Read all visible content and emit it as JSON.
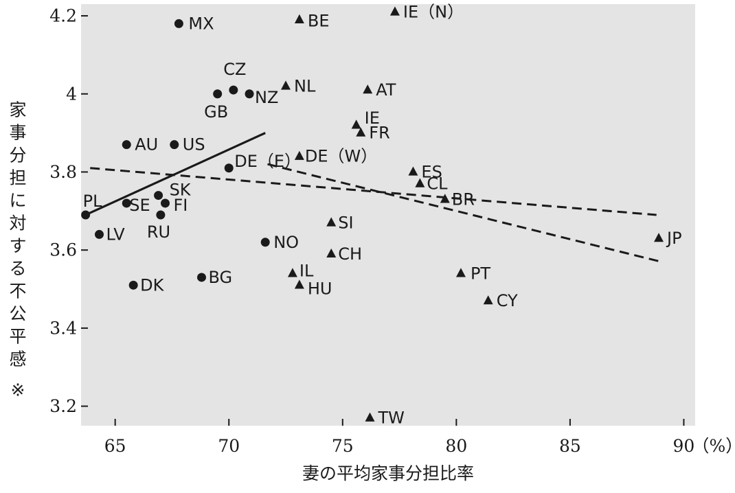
{
  "chart_data": {
    "type": "scatter",
    "xlabel": "妻の平均家事分担比率",
    "ylabel": "家事分担に対する不公平感",
    "ylabel_mark": "※",
    "x_unit": "（%）",
    "xlim": [
      63.5,
      90.5
    ],
    "ylim": [
      3.15,
      4.23
    ],
    "xticks": [
      65,
      70,
      75,
      80,
      85,
      90
    ],
    "yticks": [
      3.2,
      3.4,
      3.6,
      3.8,
      4,
      4.2
    ],
    "ytick_labels": [
      "3.2",
      "3.4",
      "3.6",
      "3.8",
      "4",
      "4.2"
    ],
    "grid": false,
    "colors": {
      "plot_bg": "#e4e4e4",
      "marker": "#1a1a1a"
    },
    "series": [
      {
        "marker": "circle",
        "points": [
          {
            "label": "MX",
            "x": 67.8,
            "y": 4.18
          },
          {
            "label": "CZ",
            "x": 70.2,
            "y": 4.01
          },
          {
            "label": "GB",
            "x": 69.5,
            "y": 4.0
          },
          {
            "label": "NZ",
            "x": 70.9,
            "y": 4.0
          },
          {
            "label": "AU",
            "x": 65.5,
            "y": 3.87
          },
          {
            "label": "US",
            "x": 67.6,
            "y": 3.87
          },
          {
            "label": "DE（E）",
            "x": 70.0,
            "y": 3.81
          },
          {
            "label": "SK",
            "x": 66.9,
            "y": 3.74
          },
          {
            "label": "PL",
            "x": 63.7,
            "y": 3.69
          },
          {
            "label": "SE",
            "x": 65.5,
            "y": 3.72
          },
          {
            "label": "FI",
            "x": 67.2,
            "y": 3.72
          },
          {
            "label": "RU",
            "x": 67.0,
            "y": 3.69
          },
          {
            "label": "LV",
            "x": 64.3,
            "y": 3.64
          },
          {
            "label": "NO",
            "x": 71.6,
            "y": 3.62
          },
          {
            "label": "DK",
            "x": 65.8,
            "y": 3.51
          },
          {
            "label": "BG",
            "x": 68.8,
            "y": 3.53
          }
        ]
      },
      {
        "marker": "triangle",
        "points": [
          {
            "label": "IE（N）",
            "x": 77.3,
            "y": 4.21
          },
          {
            "label": "BE",
            "x": 73.1,
            "y": 4.19
          },
          {
            "label": "NL",
            "x": 72.5,
            "y": 4.02
          },
          {
            "label": "AT",
            "x": 76.1,
            "y": 4.01
          },
          {
            "label": "IE",
            "x": 75.6,
            "y": 3.92
          },
          {
            "label": "FR",
            "x": 75.8,
            "y": 3.9
          },
          {
            "label": "DE（W）",
            "x": 73.1,
            "y": 3.84
          },
          {
            "label": "ES",
            "x": 78.1,
            "y": 3.8
          },
          {
            "label": "CL",
            "x": 78.4,
            "y": 3.77
          },
          {
            "label": "BR",
            "x": 79.5,
            "y": 3.73
          },
          {
            "label": "SI",
            "x": 74.5,
            "y": 3.67
          },
          {
            "label": "CH",
            "x": 74.5,
            "y": 3.59
          },
          {
            "label": "JP",
            "x": 88.9,
            "y": 3.63
          },
          {
            "label": "IL",
            "x": 72.8,
            "y": 3.54
          },
          {
            "label": "HU",
            "x": 73.1,
            "y": 3.51
          },
          {
            "label": "PT",
            "x": 80.2,
            "y": 3.54
          },
          {
            "label": "CY",
            "x": 81.4,
            "y": 3.47
          },
          {
            "label": "TW",
            "x": 76.2,
            "y": 3.17
          }
        ]
      }
    ],
    "trend_lines": [
      {
        "style": "solid",
        "from": [
          63.7,
          3.69
        ],
        "to": [
          71.6,
          3.9
        ]
      },
      {
        "style": "dashed",
        "from": [
          63.9,
          3.81
        ],
        "to": [
          88.8,
          3.69
        ]
      },
      {
        "style": "dashed",
        "from": [
          71.7,
          3.82
        ],
        "to": [
          89.0,
          3.57
        ]
      }
    ]
  }
}
